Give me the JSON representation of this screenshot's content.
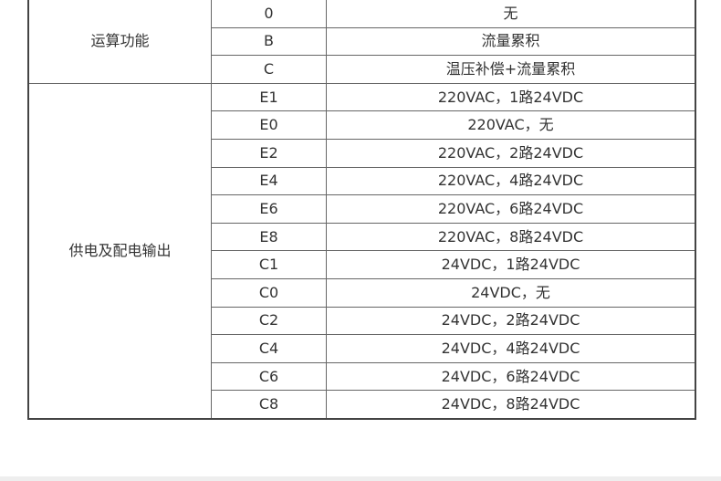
{
  "groups": [
    {
      "label": "运算功能",
      "rows": [
        {
          "code": "0",
          "desc": "无"
        },
        {
          "code": "B",
          "desc": "流量累积"
        },
        {
          "code": "C",
          "desc": "温压补偿+流量累积"
        }
      ]
    },
    {
      "label": "供电及配电输出",
      "rows": [
        {
          "code": "E1",
          "desc": "220VAC，1路24VDC"
        },
        {
          "code": "E0",
          "desc": "220VAC，无"
        },
        {
          "code": "E2",
          "desc": "220VAC，2路24VDC"
        },
        {
          "code": "E4",
          "desc": "220VAC，4路24VDC"
        },
        {
          "code": "E6",
          "desc": "220VAC，6路24VDC"
        },
        {
          "code": "E8",
          "desc": "220VAC，8路24VDC"
        },
        {
          "code": "C1",
          "desc": "24VDC，1路24VDC"
        },
        {
          "code": "C0",
          "desc": "24VDC，无"
        },
        {
          "code": "C2",
          "desc": "24VDC，2路24VDC"
        },
        {
          "code": "C4",
          "desc": "24VDC，4路24VDC"
        },
        {
          "code": "C6",
          "desc": "24VDC，6路24VDC"
        },
        {
          "code": "C8",
          "desc": "24VDC，8路24VDC"
        }
      ]
    }
  ]
}
